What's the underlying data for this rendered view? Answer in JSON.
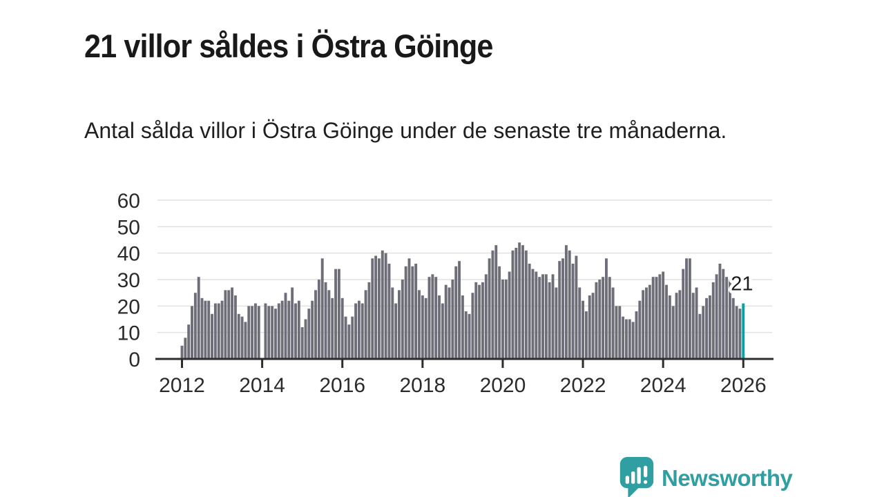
{
  "title": "21 villor såldes i Östra Göinge",
  "subtitle": "Antal sålda villor i Östra Göinge under de senaste tre månaderna.",
  "annotation": {
    "value_label": "21"
  },
  "logo": {
    "text": "Newsworthy"
  },
  "colors": {
    "bar": "#6e6e78",
    "highlight": "#00a3a9",
    "grid": "#e1e1e1",
    "axis": "#2c2c2c",
    "tick_text": "#2b2b2b",
    "annotation_text": "#1c1c1c",
    "brand": "#2f9fa2"
  },
  "chart_data": {
    "type": "bar",
    "title": "21 villor såldes i Östra Göinge",
    "xlabel": "",
    "ylabel": "",
    "x_unit": "month",
    "x_start": "2012-01",
    "frequency": "monthly",
    "ylim": [
      0,
      60
    ],
    "y_ticks": [
      0,
      10,
      20,
      30,
      40,
      50,
      60
    ],
    "x_tick_labels": [
      "2012",
      "2014",
      "2016",
      "2018",
      "2020",
      "2022",
      "2024",
      "2026"
    ],
    "x_ticks_every_n_bars": 24,
    "grid": true,
    "legend": false,
    "highlight_last_bar": true,
    "last_value_label": "21",
    "values": [
      5,
      8,
      13,
      20,
      25,
      31,
      23,
      22,
      22,
      17,
      21,
      21,
      22,
      26,
      26,
      27,
      24,
      17,
      16,
      14,
      20,
      20,
      21,
      20,
      0,
      21,
      20,
      20,
      19,
      21,
      22,
      25,
      22,
      27,
      21,
      22,
      12,
      15,
      19,
      22,
      26,
      30,
      38,
      29,
      26,
      23,
      34,
      34,
      23,
      16,
      13,
      16,
      21,
      22,
      21,
      26,
      29,
      38,
      39,
      38,
      41,
      40,
      36,
      27,
      21,
      26,
      30,
      35,
      38,
      35,
      36,
      26,
      24,
      23,
      31,
      32,
      31,
      24,
      21,
      28,
      27,
      30,
      35,
      37,
      24,
      18,
      17,
      25,
      29,
      28,
      29,
      32,
      38,
      41,
      43,
      35,
      30,
      30,
      33,
      41,
      42,
      44,
      43,
      41,
      36,
      34,
      33,
      31,
      32,
      32,
      29,
      32,
      27,
      37,
      38,
      43,
      41,
      36,
      39,
      27,
      22,
      18,
      24,
      25,
      29,
      30,
      31,
      38,
      31,
      27,
      20,
      20,
      16,
      15,
      15,
      14,
      18,
      22,
      26,
      27,
      28,
      31,
      31,
      32,
      33,
      28,
      24,
      20,
      25,
      26,
      34,
      38,
      38,
      25,
      27,
      17,
      20,
      23,
      24,
      29,
      32,
      36,
      34,
      31,
      30,
      23,
      20,
      19,
      21
    ]
  }
}
